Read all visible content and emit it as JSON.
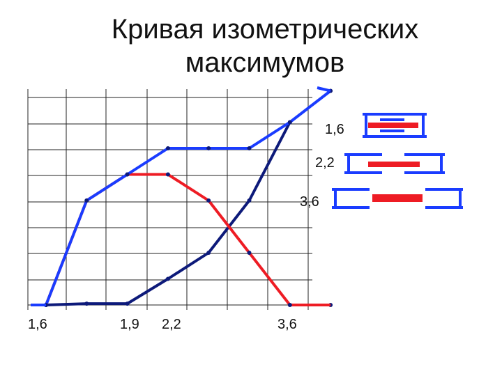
{
  "title_line1": "Кривая изометрических",
  "title_line2": "максимумов",
  "colors": {
    "blue": "#1a3cff",
    "navy": "#0d1a7a",
    "red": "#ee1c24",
    "grid": "#222222"
  },
  "chart_data": {
    "type": "line",
    "title": "Кривая изометрических максимумов",
    "x_tick_labels": [
      "1,6",
      "1,9",
      "2,2",
      "3,6"
    ],
    "side_labels": [
      "1,6",
      "2,2",
      "3,6"
    ],
    "grid": true,
    "series": [
      {
        "color": "#1a3cff",
        "x": [
          0,
          1,
          2,
          3,
          4,
          5,
          6,
          7
        ],
        "y": [
          0,
          4,
          5,
          6,
          6,
          6,
          7,
          8.2
        ]
      },
      {
        "color": "#0d1a7a",
        "x": [
          0,
          1,
          2,
          3,
          4,
          5,
          6
        ],
        "y": [
          0,
          0.05,
          0.05,
          1,
          2,
          4,
          7
        ]
      },
      {
        "color": "#ee1c24",
        "x": [
          0,
          1,
          2,
          3,
          4,
          5,
          6,
          7
        ],
        "y": [
          0,
          4,
          5,
          5,
          4,
          2,
          0,
          0
        ]
      }
    ]
  },
  "legend_icons": [
    {
      "label": "1,6"
    },
    {
      "label": "2,2"
    },
    {
      "label": "3,6"
    }
  ]
}
